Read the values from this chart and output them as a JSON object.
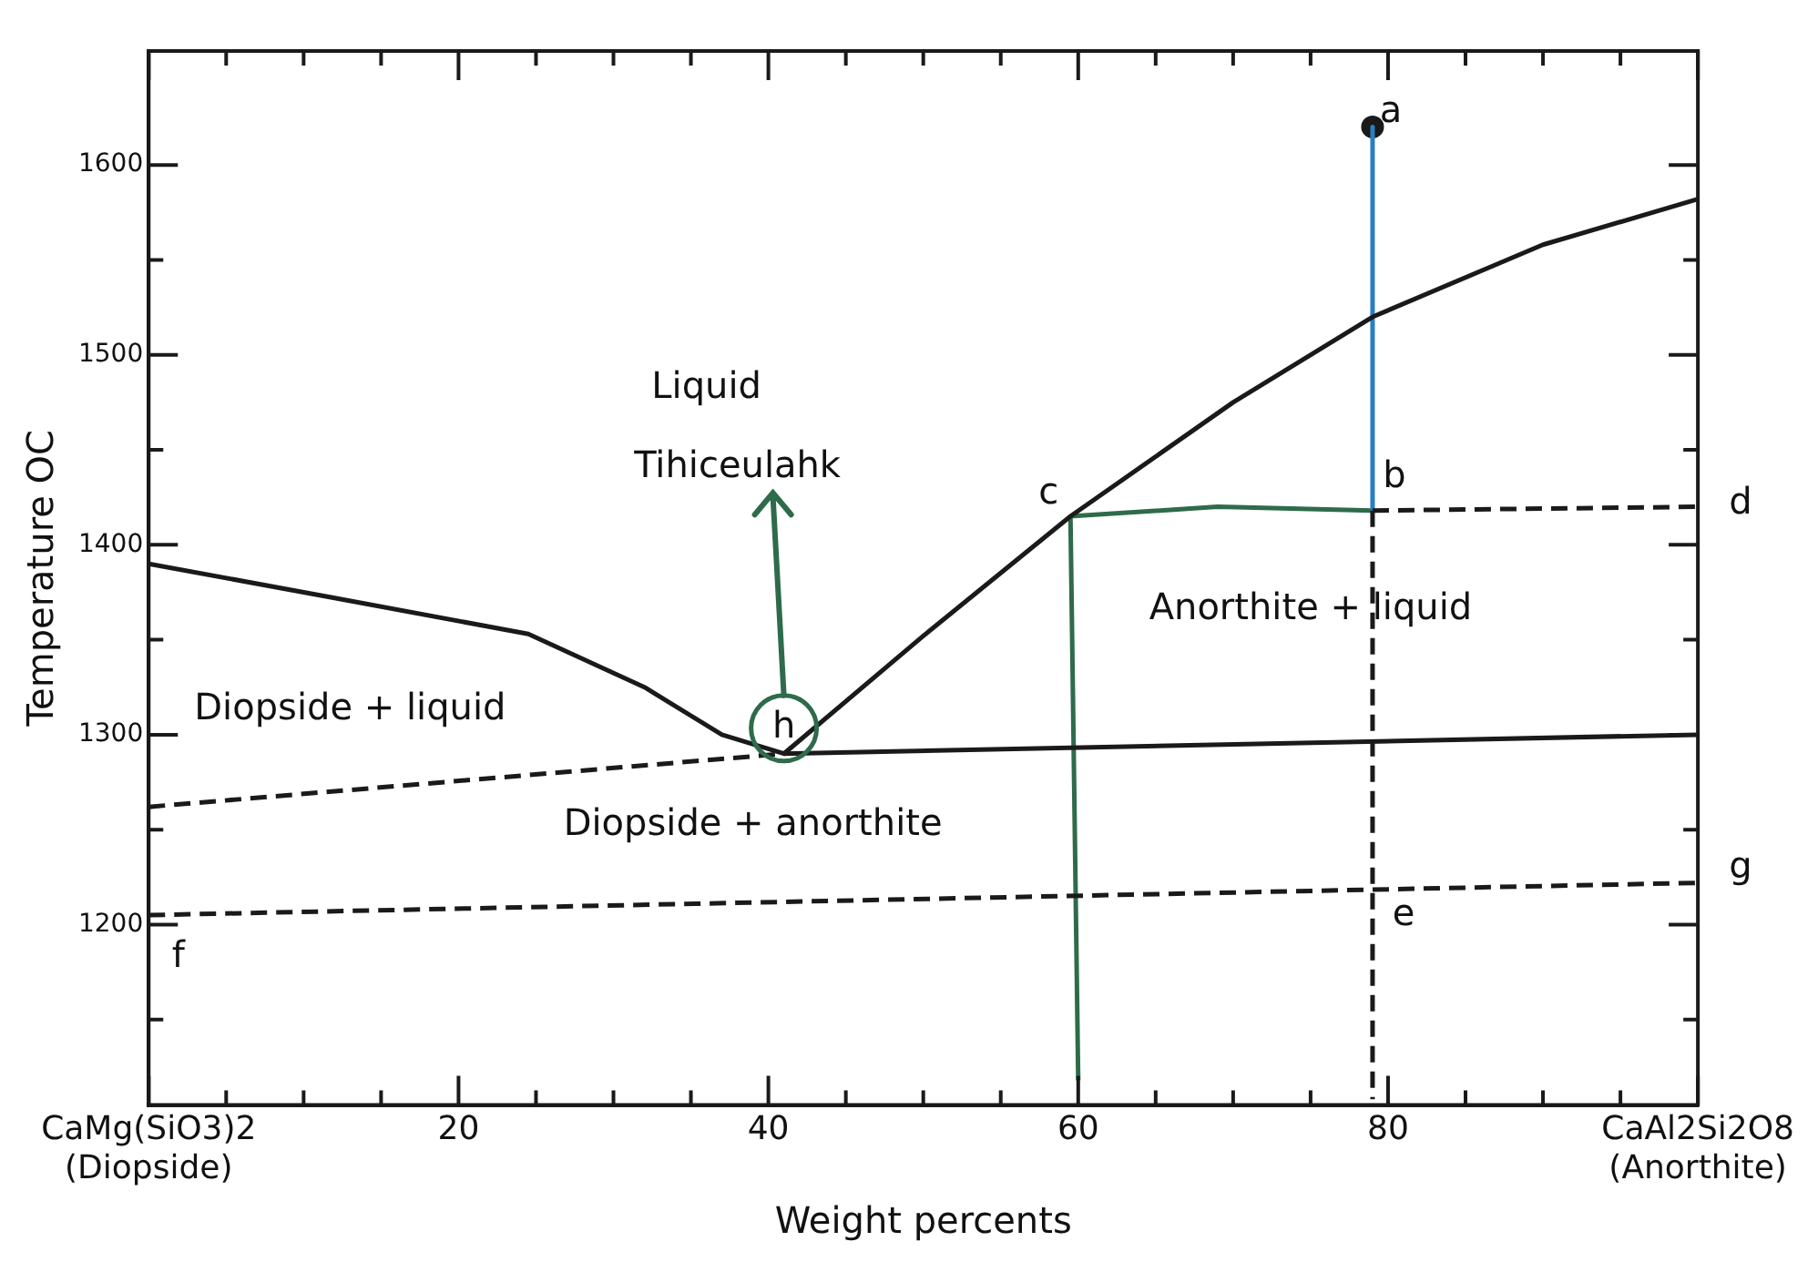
{
  "chart_data": {
    "type": "line",
    "xlabel": "Weight percents",
    "ylabel": "Temperature OC",
    "xlim": [
      0,
      100
    ],
    "ylim": [
      1105,
      1660
    ],
    "xticks": [
      {
        "value": 0,
        "label": "CaMg(SiO3)2\n(Diopside)"
      },
      {
        "value": 5,
        "label": null
      },
      {
        "value": 10,
        "label": null
      },
      {
        "value": 15,
        "label": null
      },
      20,
      {
        "value": 25,
        "label": null
      },
      {
        "value": 30,
        "label": null
      },
      {
        "value": 35,
        "label": null
      },
      40,
      {
        "value": 45,
        "label": null
      },
      {
        "value": 50,
        "label": null
      },
      {
        "value": 55,
        "label": null
      },
      60,
      {
        "value": 65,
        "label": null
      },
      {
        "value": 70,
        "label": null
      },
      {
        "value": 75,
        "label": null
      },
      80,
      {
        "value": 85,
        "label": null
      },
      {
        "value": 90,
        "label": null
      },
      {
        "value": 95,
        "label": null
      },
      {
        "value": 100,
        "label": "CaAl2Si2O8\n(Anorthite)"
      }
    ],
    "yticks": [
      {
        "value": 1150,
        "label": null
      },
      1200,
      {
        "value": 1250,
        "label": null
      },
      1300,
      {
        "value": 1350,
        "label": null
      },
      1400,
      {
        "value": 1450,
        "label": null
      },
      1500,
      {
        "value": 1550,
        "label": null
      },
      1600
    ],
    "grid": false,
    "legend": false,
    "marker": "none",
    "line_style": "solid",
    "series": [
      {
        "color": "#1a1a1a",
        "x": [
          0,
          12,
          24.5,
          32,
          37,
          41,
          50,
          59.5,
          70,
          79,
          90,
          100
        ],
        "values": [
          1390,
          1372,
          1353,
          1325,
          1300,
          1290,
          1352,
          1415,
          1475,
          1520,
          1558,
          1582
        ]
      },
      {
        "color": "#1a1a1a",
        "x": [
          41,
          100
        ],
        "values": [
          1290,
          1300
        ]
      },
      {
        "color": "#1a1a1a",
        "line_style": "dashed",
        "x": [
          0,
          41
        ],
        "values": [
          1262,
          1290
        ]
      },
      {
        "color": "#1a1a1a",
        "line_style": "dashed",
        "x": [
          0,
          100
        ],
        "values": [
          1205,
          1222
        ]
      },
      {
        "color": "#1a1a1a",
        "line_style": "dashed",
        "x": [
          79,
          100
        ],
        "values": [
          1418,
          1420
        ]
      },
      {
        "color": "#1a1a1a",
        "line_style": "dashed",
        "x": [
          79,
          79
        ],
        "values": [
          1418,
          1108
        ]
      },
      {
        "color": "#2a7fc0",
        "x": [
          79,
          79
        ],
        "values": [
          1620,
          1418
        ]
      },
      {
        "color": "#1a1a1a",
        "marker": "circle",
        "x": [
          79
        ],
        "values": [
          1620
        ]
      },
      {
        "color": "#2e6b4a",
        "x": [
          59.5,
          69,
          79
        ],
        "values": [
          1415,
          1420,
          1418
        ]
      },
      {
        "color": "#2e6b4a",
        "x": [
          59.5,
          60
        ],
        "values": [
          1415,
          1118
        ]
      }
    ],
    "annotations": [
      {
        "text": "a",
        "x": 79,
        "y": 1620
      },
      {
        "text": "b",
        "x": 79,
        "y": 1418
      },
      {
        "text": "c",
        "x": 59.5,
        "y": 1415
      },
      {
        "text": "h",
        "x": 41,
        "y": 1290
      },
      "d",
      "e",
      "f",
      "g",
      "Liquid",
      "Anorthite + liquid",
      "Diopside + liquid",
      "Diopside + anorthite",
      "Tihiceulahk"
    ]
  }
}
